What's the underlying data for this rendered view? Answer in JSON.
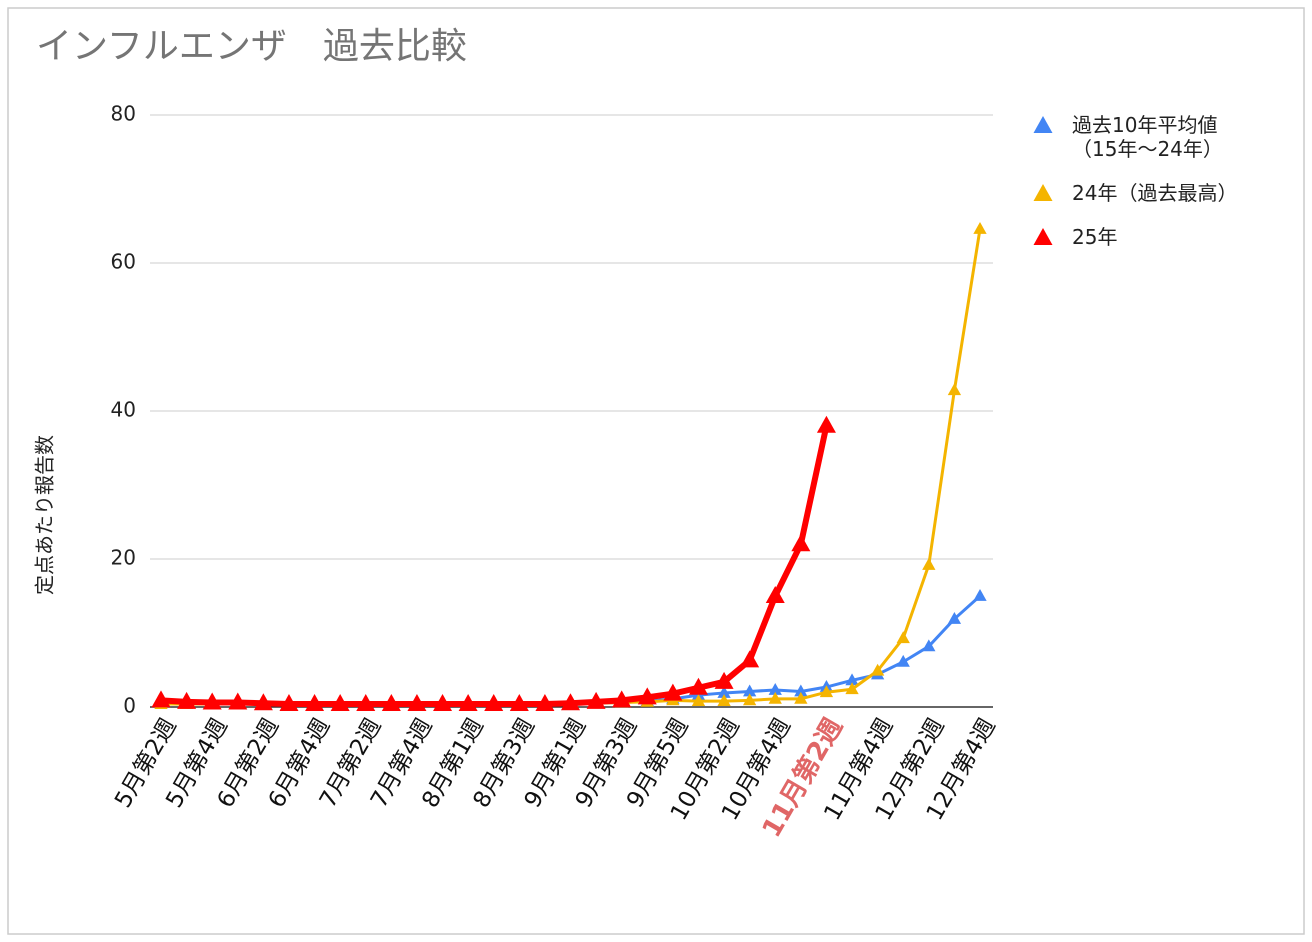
{
  "chart_data": {
    "type": "line",
    "title": "インフルエンザ　過去比較",
    "y_label": "定点あたり報告数",
    "categories": [
      "5月第2週",
      null,
      "5月第4週",
      null,
      "6月第2週",
      null,
      "6月第4週",
      null,
      "7月第2週",
      null,
      "7月第4週",
      null,
      "8月第1週",
      null,
      "8月第3週",
      null,
      "9月第1週",
      null,
      "9月第3週",
      null,
      "9月第5週",
      null,
      "10月第2週",
      null,
      "10月第4週",
      null,
      "11月第2週",
      null,
      "11月第4週",
      null,
      "12月第2週",
      null,
      "12月第4週"
    ],
    "highlight_category": 26,
    "highlight_color": "#e06666",
    "series": [
      {
        "name": "過去10年平均値\n（15年〜24年）",
        "color": "#4285f4",
        "values": [
          0.6,
          0.5,
          0.5,
          0.5,
          0.4,
          0.4,
          0.4,
          0.4,
          0.4,
          0.4,
          0.4,
          0.4,
          0.4,
          0.4,
          0.4,
          0.4,
          0.5,
          0.5,
          0.6,
          0.8,
          1.1,
          1.6,
          1.9,
          2.1,
          2.3,
          2.1,
          2.7,
          3.6,
          4.4,
          6.1,
          8.2,
          11.9,
          15.0
        ]
      },
      {
        "name": "24年（過去最高）",
        "color": "#f4b400",
        "values": [
          0.4,
          0.4,
          0.4,
          0.4,
          0.4,
          0.4,
          0.4,
          0.4,
          0.4,
          0.4,
          0.4,
          0.4,
          0.4,
          0.4,
          0.4,
          0.4,
          0.4,
          0.5,
          0.6,
          0.7,
          0.9,
          0.8,
          0.8,
          0.9,
          1.1,
          1.1,
          2.0,
          2.4,
          4.9,
          9.3,
          19.2,
          42.8,
          64.6
        ]
      },
      {
        "name": "25年",
        "color": "#ff0000",
        "values": [
          0.9,
          0.7,
          0.6,
          0.6,
          0.5,
          0.4,
          0.4,
          0.4,
          0.4,
          0.4,
          0.4,
          0.4,
          0.4,
          0.4,
          0.4,
          0.4,
          0.5,
          0.7,
          0.9,
          1.3,
          1.8,
          2.6,
          3.4,
          6.3,
          15.0,
          22.0,
          38.0,
          null,
          null,
          null,
          null,
          null,
          null
        ]
      }
    ],
    "ylim": [
      0,
      80
    ],
    "yticks": [
      0,
      20,
      40,
      60,
      80
    ],
    "grid": true,
    "legend": "right"
  }
}
